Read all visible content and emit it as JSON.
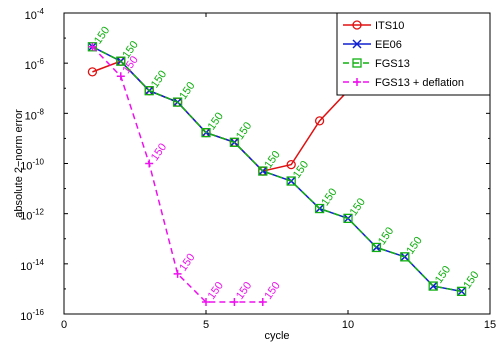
{
  "chart_data": {
    "type": "line",
    "xlabel": "cycle",
    "ylabel": "absolute 2−norm error",
    "xlim": [
      0,
      15
    ],
    "ylim": [
      1e-16,
      0.0001
    ],
    "yscale": "log",
    "x_ticks": [
      0,
      5,
      10,
      15
    ],
    "y_tick_exponents": [
      -16,
      -14,
      -12,
      -10,
      -8,
      -6,
      -4
    ],
    "y_tick_base": "10",
    "grid": false,
    "legend_position": "top-right",
    "series": [
      {
        "name": "ITS10",
        "color": "#e01010",
        "marker": "circle",
        "line": "solid",
        "x": [
          1,
          2,
          3,
          4,
          5,
          6,
          7,
          8,
          9,
          10,
          11,
          12
        ],
        "y": [
          4.5e-07,
          1.2e-06,
          8e-08,
          2.8e-08,
          1.7e-09,
          7e-10,
          5e-11,
          9e-11,
          5e-09,
          8e-08,
          5e-07,
          3.2e-05
        ]
      },
      {
        "name": "EE06",
        "color": "#1020d0",
        "marker": "x",
        "line": "solid",
        "x": [
          1,
          2,
          3,
          4,
          5,
          6,
          7,
          8,
          9,
          10,
          11,
          12,
          13,
          14
        ],
        "y": [
          4.5e-06,
          1.2e-06,
          8e-08,
          2.8e-08,
          1.7e-09,
          7e-10,
          5e-11,
          2e-11,
          1.6e-12,
          6.5e-13,
          4.5e-14,
          1.9e-14,
          1.3e-15,
          8e-16
        ]
      },
      {
        "name": "FGS13",
        "color": "#10b010",
        "marker": "square",
        "line": "dashed",
        "x": [
          1,
          2,
          3,
          4,
          5,
          6,
          7,
          8,
          9,
          10,
          11,
          12,
          13,
          14
        ],
        "y": [
          4.5e-06,
          1.2e-06,
          8e-08,
          2.8e-08,
          1.7e-09,
          7e-10,
          5e-11,
          2e-11,
          1.6e-12,
          6.5e-13,
          4.5e-14,
          1.9e-14,
          1.3e-15,
          8e-16
        ]
      },
      {
        "name": "FGS13 + deflation",
        "color": "#ee10ee",
        "marker": "plus",
        "line": "dashed",
        "x": [
          1,
          2,
          3,
          4,
          5,
          6,
          7
        ],
        "y": [
          4.5e-06,
          3e-07,
          1e-10,
          4e-15,
          3e-16,
          3e-16,
          3e-16
        ]
      }
    ],
    "annotations": [
      {
        "text": "150",
        "color": "#10b010",
        "x": 1,
        "y": 4.5e-06
      },
      {
        "text": "150",
        "color": "#10b010",
        "x": 2,
        "y": 1.2e-06
      },
      {
        "text": "150",
        "color": "#10b010",
        "x": 3,
        "y": 8e-08
      },
      {
        "text": "150",
        "color": "#10b010",
        "x": 4,
        "y": 2.8e-08
      },
      {
        "text": "150",
        "color": "#10b010",
        "x": 5,
        "y": 1.7e-09
      },
      {
        "text": "150",
        "color": "#10b010",
        "x": 6,
        "y": 7e-10
      },
      {
        "text": "150",
        "color": "#10b010",
        "x": 7,
        "y": 5e-11
      },
      {
        "text": "150",
        "color": "#10b010",
        "x": 8,
        "y": 2e-11
      },
      {
        "text": "150",
        "color": "#10b010",
        "x": 9,
        "y": 1.6e-12
      },
      {
        "text": "150",
        "color": "#10b010",
        "x": 10,
        "y": 6.5e-13
      },
      {
        "text": "150",
        "color": "#10b010",
        "x": 11,
        "y": 4.5e-14
      },
      {
        "text": "150",
        "color": "#10b010",
        "x": 12,
        "y": 1.9e-14
      },
      {
        "text": "150",
        "color": "#10b010",
        "x": 13,
        "y": 1.3e-15
      },
      {
        "text": "150",
        "color": "#10b010",
        "x": 14,
        "y": 8e-16
      },
      {
        "text": "150",
        "color": "#ee10ee",
        "x": 2,
        "y": 3e-07
      },
      {
        "text": "150",
        "color": "#ee10ee",
        "x": 3,
        "y": 1e-10
      },
      {
        "text": "150",
        "color": "#ee10ee",
        "x": 4,
        "y": 4e-15
      },
      {
        "text": "150",
        "color": "#ee10ee",
        "x": 5,
        "y": 3e-16
      },
      {
        "text": "150",
        "color": "#ee10ee",
        "x": 6,
        "y": 3e-16
      },
      {
        "text": "150",
        "color": "#ee10ee",
        "x": 7,
        "y": 3e-16
      }
    ]
  }
}
